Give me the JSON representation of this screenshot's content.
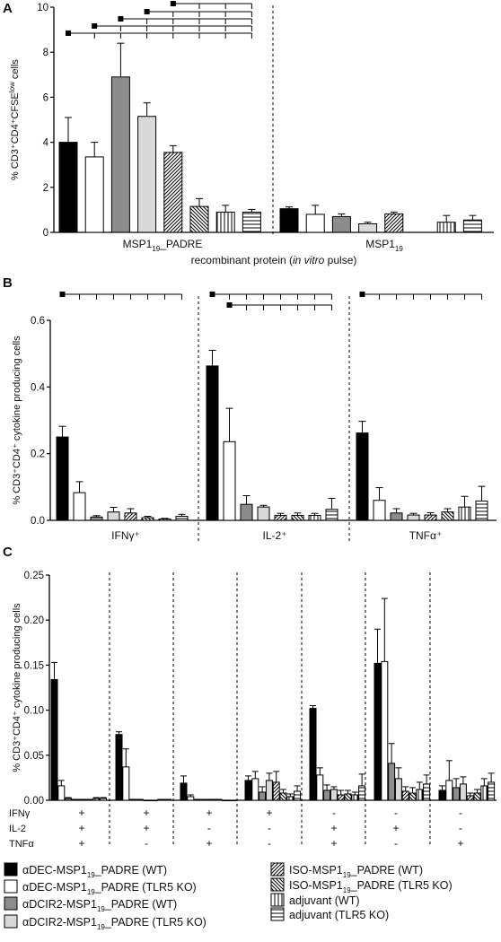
{
  "chart_data": [
    {
      "panel": "A",
      "type": "bar",
      "ylabel_main": "% CD3⁺CD4⁺CFSE",
      "ylabel_sup": "low",
      "ylabel_tail": " cells",
      "ylim": [
        0,
        10
      ],
      "yticks": [
        "0",
        "2",
        "4",
        "6",
        "8",
        "10"
      ],
      "xlabel": "recombinant protein (in vitro pulse)",
      "xlabel_pre": "recombinant protein (",
      "xlabel_it": "in vitro",
      "xlabel_post": " pulse)",
      "groups": [
        {
          "label_main": "MSP1",
          "label_sub": "19",
          "label_tail": "_PADRE",
          "values": [
            4.0,
            3.35,
            6.9,
            5.15,
            3.55,
            1.15,
            0.9,
            0.9
          ],
          "errors": [
            1.1,
            0.65,
            1.5,
            0.6,
            0.3,
            0.35,
            0.3,
            0.12
          ]
        },
        {
          "label_main": "MSP1",
          "label_sub": "19",
          "label_tail": "",
          "values": [
            1.05,
            0.8,
            0.7,
            0.38,
            0.82,
            0.0,
            0.45,
            0.55
          ],
          "errors": [
            0.08,
            0.4,
            0.12,
            0.07,
            0.08,
            0.0,
            0.3,
            0.2
          ]
        }
      ]
    },
    {
      "panel": "B",
      "type": "bar",
      "ylabel_main": "% CD3⁺CD4⁺ cytokine producing cells",
      "ylim": [
        0,
        0.6
      ],
      "yticks": [
        "0.0",
        "0.2",
        "0.4",
        "0.6"
      ],
      "groups": [
        {
          "label": "IFNγ⁺",
          "values": [
            0.25,
            0.083,
            0.01,
            0.025,
            0.022,
            0.008,
            0.004,
            0.012
          ],
          "errors": [
            0.032,
            0.033,
            0.004,
            0.014,
            0.013,
            0.004,
            0.002,
            0.006
          ]
        },
        {
          "label": "IL-2⁺",
          "values": [
            0.463,
            0.236,
            0.048,
            0.04,
            0.015,
            0.015,
            0.015,
            0.033
          ],
          "errors": [
            0.047,
            0.1,
            0.026,
            0.005,
            0.006,
            0.007,
            0.006,
            0.033
          ]
        },
        {
          "label": "TNFα⁺",
          "values": [
            0.262,
            0.06,
            0.022,
            0.016,
            0.016,
            0.025,
            0.04,
            0.058
          ],
          "errors": [
            0.035,
            0.038,
            0.013,
            0.005,
            0.007,
            0.01,
            0.032,
            0.044
          ]
        }
      ]
    },
    {
      "panel": "C",
      "type": "bar",
      "ylabel_main": "% CD3⁺CD4⁺ cytokine producing cells",
      "ylim": [
        0,
        0.25
      ],
      "yticks": [
        "0.00",
        "0.05",
        "0.10",
        "0.15",
        "0.20",
        "0.25"
      ],
      "row_labels": [
        "IFNγ",
        "IL-2",
        "TNFα"
      ],
      "groups": [
        {
          "marks": [
            "+",
            "+",
            "+"
          ],
          "values": [
            0.134,
            0.016,
            0.002,
            0.001,
            0.001,
            0.001,
            0.002,
            0.002
          ],
          "errors": [
            0.019,
            0.006,
            0.001,
            0.0,
            0.0,
            0.0,
            0.001,
            0.001
          ]
        },
        {
          "marks": [
            "+",
            "+",
            "-"
          ],
          "values": [
            0.073,
            0.037,
            0.001,
            0.001,
            0.0,
            0.0,
            0.001,
            0.001
          ],
          "errors": [
            0.003,
            0.02,
            0.0,
            0.0,
            0.0,
            0.0,
            0.0,
            0.0
          ]
        },
        {
          "marks": [
            "+",
            "-",
            "+"
          ],
          "values": [
            0.019,
            0.004,
            0.001,
            0.001,
            0.001,
            0.001,
            0.0,
            0.0
          ],
          "errors": [
            0.008,
            0.002,
            0.0,
            0.0,
            0.0,
            0.0,
            0.0,
            0.0
          ]
        },
        {
          "marks": [
            "+",
            "-",
            "-"
          ],
          "values": [
            0.022,
            0.024,
            0.009,
            0.022,
            0.02,
            0.008,
            0.004,
            0.01
          ],
          "errors": [
            0.005,
            0.008,
            0.006,
            0.008,
            0.012,
            0.004,
            0.003,
            0.006
          ]
        },
        {
          "marks": [
            "-",
            "+",
            "+"
          ],
          "values": [
            0.102,
            0.028,
            0.011,
            0.012,
            0.006,
            0.007,
            0.006,
            0.016
          ],
          "errors": [
            0.003,
            0.008,
            0.006,
            0.003,
            0.005,
            0.004,
            0.003,
            0.013
          ]
        },
        {
          "marks": [
            "-",
            "+",
            "-"
          ],
          "values": [
            0.152,
            0.154,
            0.041,
            0.024,
            0.01,
            0.008,
            0.012,
            0.018
          ],
          "errors": [
            0.038,
            0.07,
            0.022,
            0.012,
            0.005,
            0.006,
            0.008,
            0.01
          ]
        },
        {
          "marks": [
            "-",
            "-",
            "+"
          ],
          "values": [
            0.011,
            0.022,
            0.014,
            0.018,
            0.005,
            0.008,
            0.016,
            0.02
          ],
          "errors": [
            0.005,
            0.022,
            0.01,
            0.008,
            0.003,
            0.004,
            0.008,
            0.01
          ]
        }
      ]
    }
  ],
  "panel_letters": [
    "A",
    "B",
    "C"
  ],
  "legend": [
    {
      "pre": "αDEC-MSP1",
      "sub": "19",
      "post": "_PADRE (WT)",
      "fill": "#000000",
      "pattern": "solid"
    },
    {
      "pre": "αDEC-MSP1",
      "sub": "19",
      "post": "_PADRE (TLR5 KO)",
      "fill": "#ffffff",
      "pattern": "solid"
    },
    {
      "pre": "αDCIR2-MSP1",
      "sub": "19",
      "post": "_PADRE (WT)",
      "fill": "#8c8c8c",
      "pattern": "solid"
    },
    {
      "pre": "αDCIR2-MSP1",
      "sub": "19",
      "post": "_PADRE (TLR5 KO)",
      "fill": "#d9d9d9",
      "pattern": "solid"
    },
    {
      "pre": "ISO-MSP1",
      "sub": "19",
      "post": "_PADRE (WT)",
      "fill": "#ffffff",
      "pattern": "diag-fwd"
    },
    {
      "pre": "ISO-MSP1",
      "sub": "19",
      "post": "_PADRE (TLR5 KO)",
      "fill": "#ffffff",
      "pattern": "diag-back"
    },
    {
      "pre": "adjuvant (WT)",
      "sub": "",
      "post": "",
      "fill": "#ffffff",
      "pattern": "vert"
    },
    {
      "pre": "adjuvant (TLR5 KO)",
      "sub": "",
      "post": "",
      "fill": "#ffffff",
      "pattern": "horiz"
    }
  ]
}
